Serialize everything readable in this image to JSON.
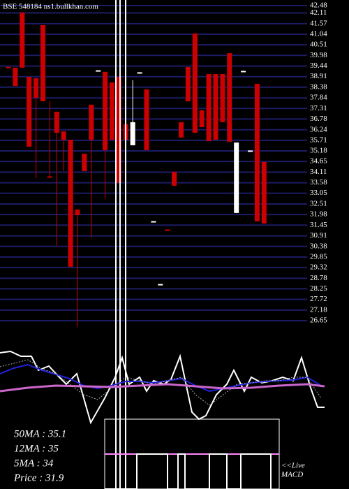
{
  "chart_data": {
    "type": "candlestick",
    "title": "BSE 548184 ns1.bullkhan.com",
    "up_color": "#ffffff",
    "down_color": "#cc0000",
    "grid_color": "#1c1c66",
    "ylim": [
      26.65,
      42.48
    ],
    "yticks": [
      42.48,
      42.11,
      41.57,
      41.04,
      40.51,
      39.98,
      39.44,
      38.91,
      38.38,
      37.84,
      37.31,
      36.78,
      36.24,
      35.71,
      35.18,
      34.65,
      34.11,
      33.58,
      33.05,
      32.51,
      31.98,
      31.45,
      30.91,
      30.38,
      29.85,
      29.32,
      28.78,
      28.25,
      27.72,
      27.18,
      26.65
    ],
    "grid": true,
    "candles": [
      {
        "open": 39.4,
        "high": 39.4,
        "low": 39.36,
        "close": 39.36
      },
      {
        "open": 39.36,
        "high": 39.36,
        "low": 38.44,
        "close": 38.44
      },
      {
        "open": 42.13,
        "high": 42.13,
        "low": 39.36,
        "close": 39.36
      },
      {
        "open": 38.9,
        "high": 38.9,
        "low": 35.39,
        "close": 35.39
      },
      {
        "open": 38.83,
        "high": 38.83,
        "low": 33.81,
        "close": 37.85
      },
      {
        "open": 41.5,
        "high": 41.5,
        "low": 37.67,
        "close": 37.67
      },
      {
        "open": 33.9,
        "high": 37.67,
        "low": 33.85,
        "close": 33.85
      },
      {
        "open": 37.15,
        "high": 37.15,
        "low": 30.41,
        "close": 36.09
      },
      {
        "open": 36.16,
        "high": 36.16,
        "low": 34.16,
        "close": 35.74
      },
      {
        "open": 35.74,
        "high": 35.74,
        "low": 29.36,
        "close": 29.36
      },
      {
        "open": 32.23,
        "high": 32.23,
        "low": 26.34,
        "close": 31.95
      },
      {
        "open": 35.04,
        "high": 35.04,
        "low": 34.16,
        "close": 34.16
      },
      {
        "open": 37.5,
        "high": 37.5,
        "low": 30.83,
        "close": 35.74
      },
      {
        "open": 39.18,
        "high": 39.23,
        "low": 39.18,
        "close": 39.23
      },
      {
        "open": 39.15,
        "high": 39.15,
        "low": 32.76,
        "close": 35.22
      },
      {
        "open": 38.62,
        "high": 38.62,
        "low": 35.74,
        "close": 35.74
      },
      {
        "open": 38.9,
        "high": 38.9,
        "low": 33.57,
        "close": 33.57
      },
      {
        "open": 36.52,
        "high": 36.52,
        "low": 35.74,
        "close": 35.74
      },
      {
        "open": 35.46,
        "high": 38.73,
        "low": 35.46,
        "close": 36.62
      },
      {
        "open": 39.08,
        "high": 39.13,
        "low": 39.08,
        "close": 39.13
      },
      {
        "open": 38.27,
        "high": 38.27,
        "low": 35.22,
        "close": 35.22
      },
      {
        "open": 31.6,
        "high": 31.65,
        "low": 31.6,
        "close": 31.65
      },
      {
        "open": 28.44,
        "high": 28.49,
        "low": 28.44,
        "close": 28.49
      },
      {
        "open": 31.23,
        "high": 31.23,
        "low": 31.18,
        "close": 31.18
      },
      {
        "open": 34.13,
        "high": 34.13,
        "low": 33.43,
        "close": 33.43
      },
      {
        "open": 36.62,
        "high": 36.62,
        "low": 35.85,
        "close": 35.85
      },
      {
        "open": 39.39,
        "high": 39.39,
        "low": 37.67,
        "close": 37.67
      },
      {
        "open": 41.08,
        "high": 41.08,
        "low": 36.09,
        "close": 36.09
      },
      {
        "open": 37.22,
        "high": 37.22,
        "low": 36.37,
        "close": 36.37
      },
      {
        "open": 39.04,
        "high": 39.04,
        "low": 35.67,
        "close": 35.67
      },
      {
        "open": 39.04,
        "high": 39.04,
        "low": 35.74,
        "close": 35.74
      },
      {
        "open": 39.04,
        "high": 39.04,
        "low": 36.62,
        "close": 36.62
      },
      {
        "open": 40.09,
        "high": 40.09,
        "low": 35.64,
        "close": 35.64
      },
      {
        "open": 32.06,
        "high": 35.6,
        "low": 32.06,
        "close": 35.6
      },
      {
        "open": 39.15,
        "high": 39.2,
        "low": 39.15,
        "close": 39.2
      },
      {
        "open": 35.15,
        "high": 35.2,
        "low": 35.15,
        "close": 35.2
      },
      {
        "open": 38.55,
        "high": 38.55,
        "low": 31.64,
        "close": 31.64
      },
      {
        "open": 34.62,
        "high": 34.62,
        "low": 31.53,
        "close": 31.53
      }
    ],
    "stats": [
      "50MA : 35.1",
      "12MA : 35",
      "5MA : 34",
      "Price   : 31.9"
    ],
    "live_label": [
      "<<Live",
      "MACD"
    ]
  }
}
